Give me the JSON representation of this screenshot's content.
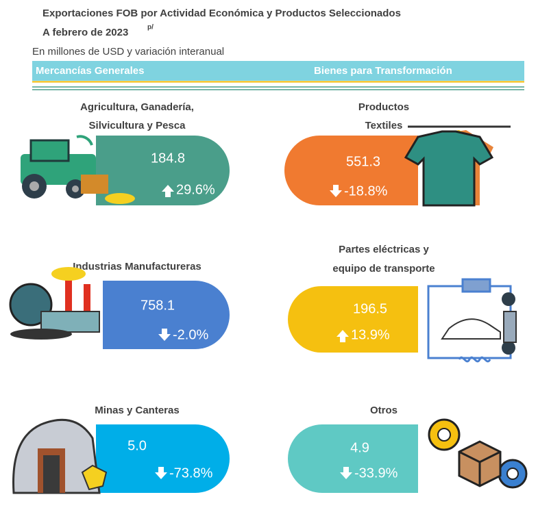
{
  "header": {
    "title": "Exportaciones FOB por Actividad Económica y Productos Seleccionados",
    "title_line2": "A febrero de 2023",
    "superscript": "p/",
    "subtitle": "En millones de USD y variación interanual"
  },
  "sections": [
    "Mercancías Generales",
    "Bienes para Transformación"
  ],
  "cards": [
    {
      "title": [
        "Agricultura, Ganadería,",
        "Silvicultura y Pesca"
      ],
      "value": "184.8",
      "change": "29.6%",
      "color": "#4a9e8a"
    },
    {
      "title": [
        "Productos",
        "Textiles"
      ],
      "value": "551.3",
      "change": "-18.8%",
      "color": "#f07a30"
    },
    {
      "title": [
        "Industrias Manufactureras"
      ],
      "value": "758.1",
      "change": "-2.0%",
      "color": "#4a80d0"
    },
    {
      "title": [
        "Partes eléctricas y",
        "equipo de transporte"
      ],
      "value": "196.5",
      "change": "13.9%",
      "color": "#f5c010"
    },
    {
      "title": [
        "Minas y Canteras"
      ],
      "value": "5.0",
      "change": "-73.8%",
      "color": "#00aee8"
    },
    {
      "title": [
        "Otros"
      ],
      "value": "4.9",
      "change": "-33.9%",
      "color": "#5fc9c4"
    }
  ]
}
